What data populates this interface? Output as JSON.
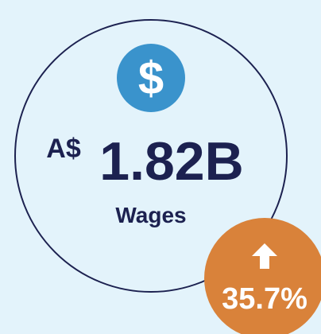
{
  "icon": {
    "symbol": "$"
  },
  "metric": {
    "currency": "A$",
    "amount": "1.82B",
    "label": "Wages"
  },
  "change": {
    "value": "35.7%"
  }
}
